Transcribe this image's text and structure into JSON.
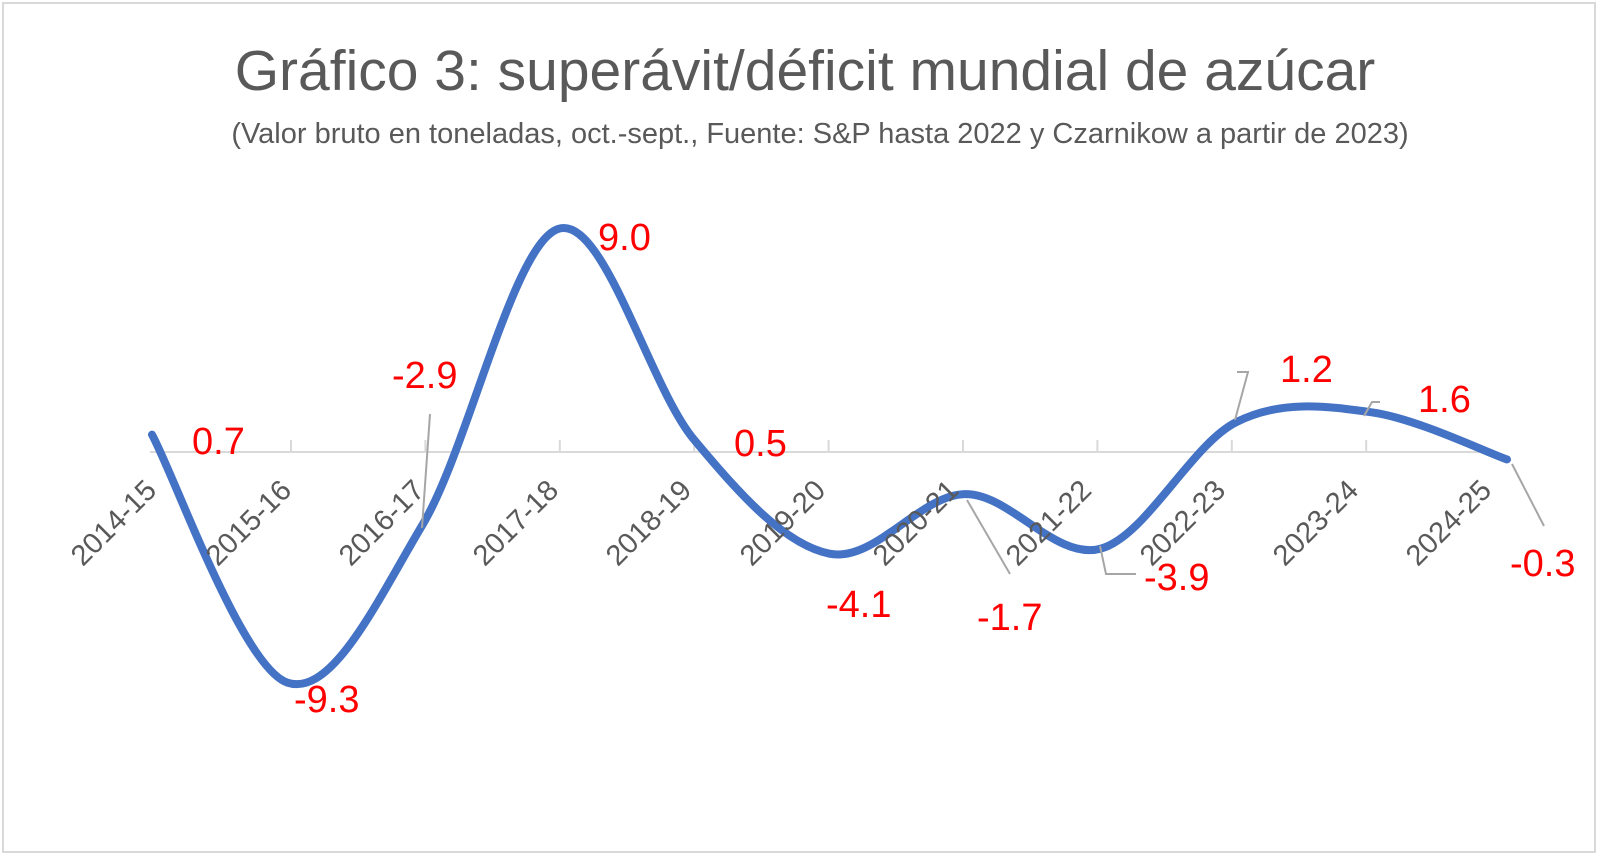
{
  "chart_data": {
    "type": "line",
    "title": "Gráfico 3: superávit/déficit mundial de azúcar",
    "subtitle": "(Valor bruto en toneladas, oct.-sept., Fuente: S&P hasta 2022 y Czarnikow a partir de 2023)",
    "categories": [
      "2014-15",
      "2015-16",
      "2016-17",
      "2017-18",
      "2018-19",
      "2019-20",
      "2020-21",
      "2021-22",
      "2022-23",
      "2023-24",
      "2024-25"
    ],
    "series": [
      {
        "values": [
          0.7,
          -9.3,
          -2.9,
          9.0,
          0.5,
          -4.1,
          -1.7,
          -3.9,
          1.2,
          1.6,
          -0.3
        ],
        "data_labels": [
          "0.7",
          "-9.3",
          "-2.9",
          "9.0",
          "0.5",
          "-4.1",
          "-1.7",
          "-3.9",
          "1.2",
          "1.6",
          "-0.3"
        ]
      }
    ],
    "smoothed": true,
    "ylim": [
      -12,
      12
    ],
    "grid": false,
    "legend": "none",
    "colors": {
      "line": "#4472c4",
      "data_label": "#ff0000",
      "axis": "#d9d9d9",
      "text": "#595959",
      "leader_line": "#a6a6a6"
    }
  }
}
